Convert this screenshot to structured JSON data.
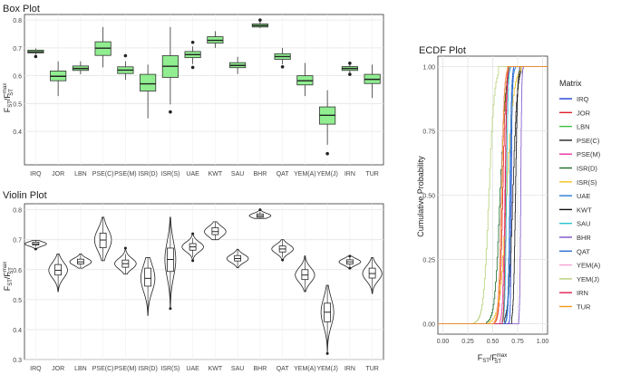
{
  "chart_data": [
    {
      "type": "box",
      "title": "Box Plot",
      "ylabel_main": "F",
      "ylabel_sub": "ST",
      "ylabel_slash": "/F",
      "ylabel_sup": "max",
      "ylabel_sub2": "ST",
      "ylim": [
        0.28,
        0.82
      ],
      "yticks": [
        "0.4",
        "0.5",
        "0.6",
        "0.7",
        "0.8"
      ],
      "ytick_values": [
        0.4,
        0.5,
        0.6,
        0.7,
        0.8
      ],
      "box_color": "#90ee90",
      "categories": [
        "IRQ",
        "JOR",
        "LBN",
        "PSE(C)",
        "PSE(M)",
        "ISR(D)",
        "ISR(S)",
        "UAE",
        "KWT",
        "SAU",
        "BHR",
        "QAT",
        "YEM(A)",
        "YEM(J)",
        "IRN",
        "TUR"
      ],
      "boxes": [
        {
          "q1": 0.682,
          "median": 0.686,
          "q3": 0.692,
          "wlo": 0.676,
          "whi": 0.698,
          "outliers": [
            0.669
          ]
        },
        {
          "q1": 0.582,
          "median": 0.598,
          "q3": 0.617,
          "wlo": 0.527,
          "whi": 0.652,
          "outliers": []
        },
        {
          "q1": 0.619,
          "median": 0.626,
          "q3": 0.635,
          "wlo": 0.605,
          "whi": 0.652,
          "outliers": []
        },
        {
          "q1": 0.673,
          "median": 0.699,
          "q3": 0.722,
          "wlo": 0.63,
          "whi": 0.775,
          "outliers": []
        },
        {
          "q1": 0.608,
          "median": 0.62,
          "q3": 0.632,
          "wlo": 0.585,
          "whi": 0.652,
          "outliers": [
            0.672
          ]
        },
        {
          "q1": 0.545,
          "median": 0.571,
          "q3": 0.605,
          "wlo": 0.447,
          "whi": 0.64,
          "outliers": []
        },
        {
          "q1": 0.594,
          "median": 0.634,
          "q3": 0.672,
          "wlo": 0.497,
          "whi": 0.775,
          "outliers": [
            0.47
          ]
        },
        {
          "q1": 0.665,
          "median": 0.676,
          "q3": 0.687,
          "wlo": 0.642,
          "whi": 0.705,
          "outliers": [
            0.72,
            0.63
          ]
        },
        {
          "q1": 0.717,
          "median": 0.727,
          "q3": 0.74,
          "wlo": 0.7,
          "whi": 0.76,
          "outliers": []
        },
        {
          "q1": 0.629,
          "median": 0.637,
          "q3": 0.647,
          "wlo": 0.606,
          "whi": 0.668,
          "outliers": []
        },
        {
          "q1": 0.775,
          "median": 0.78,
          "q3": 0.786,
          "wlo": 0.771,
          "whi": 0.794,
          "outliers": [
            0.8
          ]
        },
        {
          "q1": 0.659,
          "median": 0.669,
          "q3": 0.679,
          "wlo": 0.641,
          "whi": 0.7,
          "outliers": [
            0.632
          ]
        },
        {
          "q1": 0.567,
          "median": 0.582,
          "q3": 0.6,
          "wlo": 0.527,
          "whi": 0.646,
          "outliers": []
        },
        {
          "q1": 0.426,
          "median": 0.458,
          "q3": 0.488,
          "wlo": 0.352,
          "whi": 0.548,
          "outliers": [
            0.32
          ]
        },
        {
          "q1": 0.619,
          "median": 0.626,
          "q3": 0.633,
          "wlo": 0.61,
          "whi": 0.64,
          "outliers": [
            0.645,
            0.605
          ]
        },
        {
          "q1": 0.572,
          "median": 0.587,
          "q3": 0.605,
          "wlo": 0.52,
          "whi": 0.64,
          "outliers": []
        }
      ]
    },
    {
      "type": "violin",
      "title": "Violin Plot",
      "ylim": [
        0.3,
        0.82
      ],
      "yticks": [
        "0.3",
        "0.4",
        "0.5",
        "0.6",
        "0.7",
        "0.8"
      ],
      "ytick_values": [
        0.3,
        0.4,
        0.5,
        0.6,
        0.7,
        0.8
      ],
      "categories": [
        "IRQ",
        "JOR",
        "LBN",
        "PSE(C)",
        "PSE(M)",
        "ISR(D)",
        "ISR(S)",
        "UAE",
        "KWT",
        "SAU",
        "BHR",
        "QAT",
        "YEM(A)",
        "YEM(J)",
        "IRN",
        "TUR"
      ]
    },
    {
      "type": "ecdf",
      "title": "ECDF Plot",
      "ylabel": "Cumulative Probability",
      "xlim": [
        -0.05,
        1.05
      ],
      "ylim": [
        -0.04,
        1.04
      ],
      "xticks": [
        "0.00",
        "0.25",
        "0.50",
        "0.75",
        "1.00"
      ],
      "xtick_values": [
        0,
        0.25,
        0.5,
        0.75,
        1.0
      ],
      "yticks": [
        "0.00",
        "0.25",
        "0.50",
        "0.75",
        "1.00"
      ],
      "ytick_values": [
        0,
        0.25,
        0.5,
        0.75,
        1.0
      ],
      "legend_title": "Matrix",
      "legend_position": "right",
      "series": [
        {
          "name": "IRQ",
          "color": "#1f3fd6"
        },
        {
          "name": "JOR",
          "color": "#e0202a"
        },
        {
          "name": "LBN",
          "color": "#3cc23c"
        },
        {
          "name": "PSE(C)",
          "color": "#222222"
        },
        {
          "name": "PSE(M)",
          "color": "#ee2fa0"
        },
        {
          "name": "ISR(D)",
          "color": "#1a6b2a"
        },
        {
          "name": "ISR(S)",
          "color": "#f2c21a"
        },
        {
          "name": "UAE",
          "color": "#2b7bd6"
        },
        {
          "name": "KWT",
          "color": "#111111"
        },
        {
          "name": "SAU",
          "color": "#27c4d0"
        },
        {
          "name": "BHR",
          "color": "#7b4fc9"
        },
        {
          "name": "QAT",
          "color": "#2f6fd0"
        },
        {
          "name": "YEM(A)",
          "color": "#f5a3d4"
        },
        {
          "name": "YEM(J)",
          "color": "#b6cf78"
        },
        {
          "name": "IRN",
          "color": "#e02050"
        },
        {
          "name": "TUR",
          "color": "#f39a1c"
        }
      ]
    }
  ]
}
